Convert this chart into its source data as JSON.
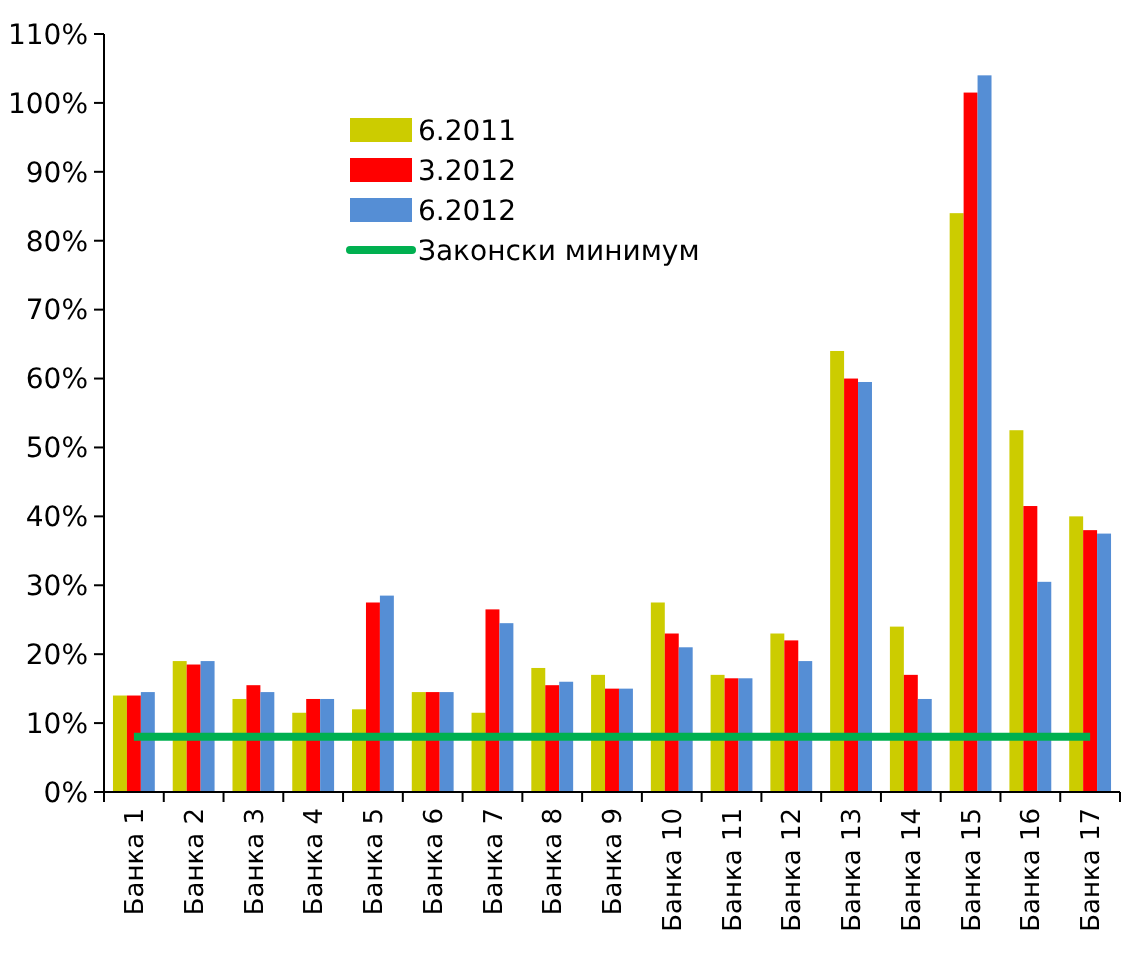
{
  "chart_data": {
    "type": "bar",
    "categories": [
      "Банка 1",
      "Банка 2",
      "Банка 3",
      "Банка 4",
      "Банка 5",
      "Банка 6",
      "Банка 7",
      "Банка 8",
      "Банка 9",
      "Банка 10",
      "Банка 11",
      "Банка 12",
      "Банка 13",
      "Банка 14",
      "Банка 15",
      "Банка 16",
      "Банка 17"
    ],
    "series": [
      {
        "name": "6.2011",
        "color": "#cccc00",
        "values": [
          14,
          19,
          13.5,
          11.5,
          12,
          14.5,
          11.5,
          18,
          17,
          27.5,
          17,
          23,
          64,
          24,
          84,
          52.5,
          40
        ]
      },
      {
        "name": "3.2012",
        "color": "#ff0000",
        "values": [
          14,
          18.5,
          15.5,
          13.5,
          27.5,
          14.5,
          26.5,
          15.5,
          15,
          23,
          16.5,
          22,
          60,
          17,
          101.5,
          41.5,
          38
        ]
      },
      {
        "name": "6.2012",
        "color": "#558ed5",
        "values": [
          14.5,
          19,
          14.5,
          13.5,
          28.5,
          14.5,
          24.5,
          16,
          15,
          21,
          16.5,
          19,
          59.5,
          13.5,
          104,
          30.5,
          37.5
        ]
      },
      {
        "name": "Законски минимум",
        "type": "line",
        "color": "#00b050",
        "values": [
          8,
          8,
          8,
          8,
          8,
          8,
          8,
          8,
          8,
          8,
          8,
          8,
          8,
          8,
          8,
          8,
          8
        ]
      }
    ],
    "ylim": [
      0,
      110
    ],
    "yticks": [
      {
        "value": 0,
        "label": "0%"
      },
      {
        "value": 10,
        "label": "10%"
      },
      {
        "value": 20,
        "label": "20%"
      },
      {
        "value": 30,
        "label": "30%"
      },
      {
        "value": 40,
        "label": "40%"
      },
      {
        "value": 50,
        "label": "50%"
      },
      {
        "value": 60,
        "label": "60%"
      },
      {
        "value": 70,
        "label": "70%"
      },
      {
        "value": 80,
        "label": "80%"
      },
      {
        "value": 90,
        "label": "90%"
      },
      {
        "value": 100,
        "label": "100%"
      },
      {
        "value": 110,
        "label": "110%"
      }
    ],
    "grid": false,
    "legend": "top left"
  }
}
